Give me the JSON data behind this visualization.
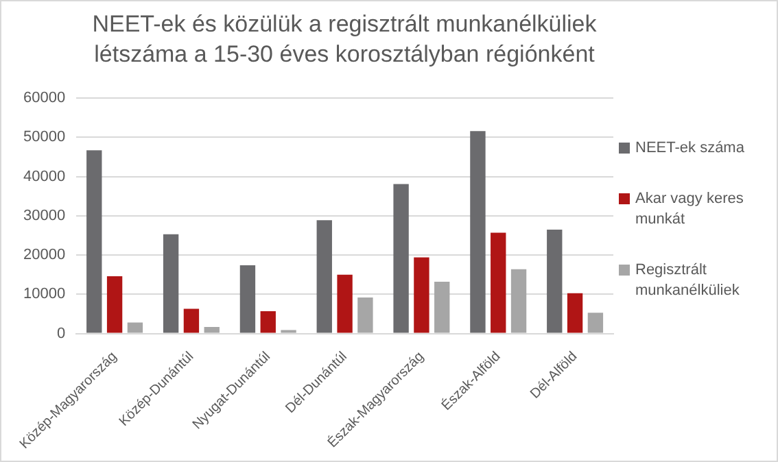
{
  "chart_data": {
    "type": "bar",
    "title": "NEET-ek és közülük a regisztrált munkanélküliek létszáma a 15-30 éves korosztályban régiónként",
    "categories": [
      "Közép-Magyarország",
      "Közép-Dunántúl",
      "Nyugat-Dunántúl",
      "Dél-Dunántúl",
      "Észak-Magyarország",
      "Észak-Alföld",
      "Dél-Alföld"
    ],
    "series": [
      {
        "name": "NEET-ek száma",
        "color": "#6b6b6e",
        "values": [
          46700,
          25300,
          17400,
          28900,
          38100,
          51600,
          26500
        ]
      },
      {
        "name": "Akar vagy keres munkát",
        "color": "#b01515",
        "values": [
          14600,
          6300,
          5700,
          15000,
          19400,
          25700,
          10300
        ]
      },
      {
        "name": "Regisztrált munkanélküliek",
        "color": "#a6a6a6",
        "values": [
          2800,
          1700,
          900,
          9200,
          13200,
          16400,
          5300
        ]
      }
    ],
    "ylim": [
      0,
      60000
    ],
    "yticks": [
      0,
      10000,
      20000,
      30000,
      40000,
      50000,
      60000
    ],
    "grid": "y",
    "legend": "right"
  }
}
